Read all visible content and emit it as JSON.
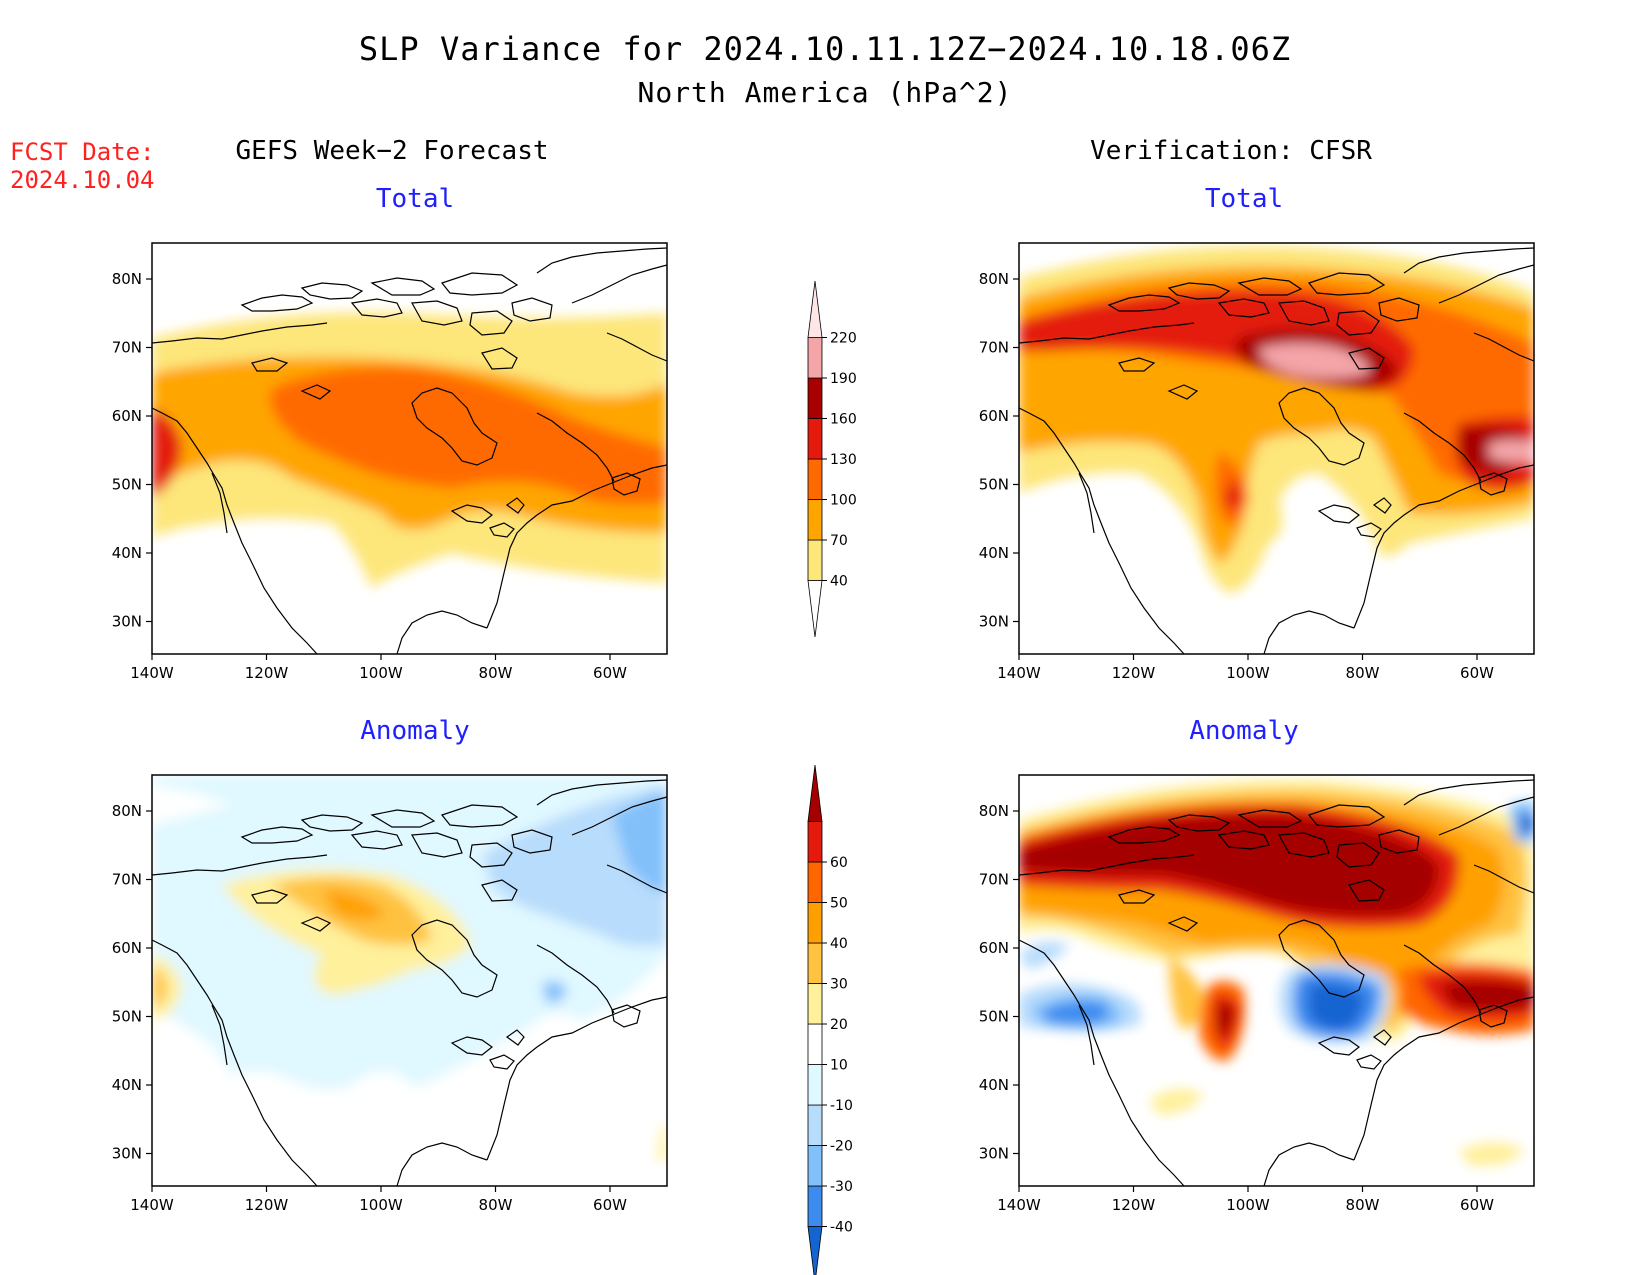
{
  "title": "SLP Variance for 2024.10.11.12Z−2024.10.18.06Z",
  "subtitle": "North America (hPa^2)",
  "fcst_label": "FCST Date:\n2024.10.04",
  "columns": {
    "left": "GEFS Week−2 Forecast",
    "right": "Verification: CFSR"
  },
  "rows": {
    "top": "Total",
    "bottom": "Anomaly"
  },
  "axes": {
    "lat_ticks": [
      "80N",
      "70N",
      "60N",
      "50N",
      "40N",
      "30N"
    ],
    "lon_ticks": [
      "140W",
      "120W",
      "100W",
      "80W",
      "60W"
    ]
  },
  "colorbars": {
    "total": {
      "levels": [
        "40",
        "70",
        "100",
        "130",
        "160",
        "190",
        "220"
      ],
      "colors": [
        "#ffffff",
        "#fde67a",
        "#ffa500",
        "#ff6a00",
        "#e31a0c",
        "#a80000",
        "#f4a5a8",
        "#ffe6e6"
      ]
    },
    "anomaly": {
      "levels": [
        "-40",
        "-30",
        "-20",
        "-10",
        "10",
        "20",
        "30",
        "40",
        "50",
        "60"
      ],
      "colors": [
        "#1464d2",
        "#3c8cf0",
        "#82c0fa",
        "#b8dcfc",
        "#e0f8ff",
        "#ffffff",
        "#fff09b",
        "#ffc241",
        "#ffa000",
        "#ff6600",
        "#e31a0c",
        "#a50000"
      ]
    }
  },
  "colors": {
    "title_red": "#ff2020",
    "subtitle_blue": "#2020ff"
  }
}
